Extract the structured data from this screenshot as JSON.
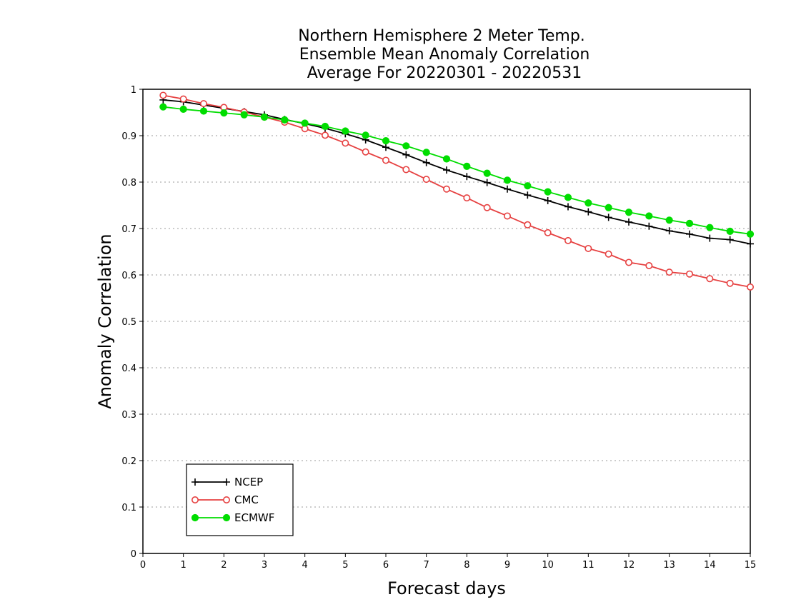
{
  "chart_data": {
    "type": "line",
    "title_lines": [
      "Northern Hemisphere 2 Meter Temp.",
      "Ensemble Mean Anomaly Correlation",
      "Average For 20220301 - 20220531"
    ],
    "xlabel": "Forecast days",
    "ylabel": "Anomaly Correlation",
    "xlim": [
      0,
      15
    ],
    "ylim": [
      0,
      1
    ],
    "xticks": [
      "0",
      "1",
      "2",
      "3",
      "4",
      "5",
      "6",
      "7",
      "8",
      "9",
      "10",
      "11",
      "12",
      "13",
      "14",
      "15"
    ],
    "yticks": [
      "0",
      "0.1",
      "0.2",
      "0.3",
      "0.4",
      "0.5",
      "0.6",
      "0.7",
      "0.8",
      "0.9",
      "1"
    ],
    "grid": "horizontal dotted",
    "legend_position": "bottom-left",
    "x": [
      0.5,
      1,
      1.5,
      2,
      2.5,
      3,
      3.5,
      4,
      4.5,
      5,
      5.5,
      6,
      6.5,
      7,
      7.5,
      8,
      8.5,
      9,
      9.5,
      10,
      10.5,
      11,
      11.5,
      12,
      12.5,
      13,
      13.5,
      14,
      14.5,
      15
    ],
    "series": [
      {
        "name": "NCEP",
        "color": "#000000",
        "marker": "plus",
        "values": [
          0.977,
          0.973,
          0.966,
          0.959,
          0.952,
          0.945,
          0.935,
          0.926,
          0.916,
          0.904,
          0.891,
          0.875,
          0.859,
          0.842,
          0.826,
          0.812,
          0.799,
          0.785,
          0.772,
          0.76,
          0.747,
          0.736,
          0.724,
          0.714,
          0.705,
          0.695,
          0.688,
          0.679,
          0.676,
          0.667
        ]
      },
      {
        "name": "CMC",
        "color": "#e64040",
        "marker": "open-circle",
        "values": [
          0.987,
          0.979,
          0.969,
          0.961,
          0.951,
          0.94,
          0.929,
          0.915,
          0.901,
          0.884,
          0.865,
          0.847,
          0.827,
          0.806,
          0.785,
          0.766,
          0.745,
          0.727,
          0.708,
          0.691,
          0.674,
          0.657,
          0.645,
          0.627,
          0.62,
          0.606,
          0.602,
          0.592,
          0.582,
          0.574
        ]
      },
      {
        "name": "ECMWF",
        "color": "#00dd00",
        "marker": "filled-circle",
        "values": [
          0.962,
          0.957,
          0.953,
          0.949,
          0.945,
          0.94,
          0.934,
          0.927,
          0.92,
          0.91,
          0.901,
          0.889,
          0.878,
          0.864,
          0.85,
          0.834,
          0.819,
          0.804,
          0.792,
          0.779,
          0.767,
          0.755,
          0.745,
          0.735,
          0.727,
          0.718,
          0.711,
          0.702,
          0.694,
          0.688
        ]
      }
    ]
  }
}
